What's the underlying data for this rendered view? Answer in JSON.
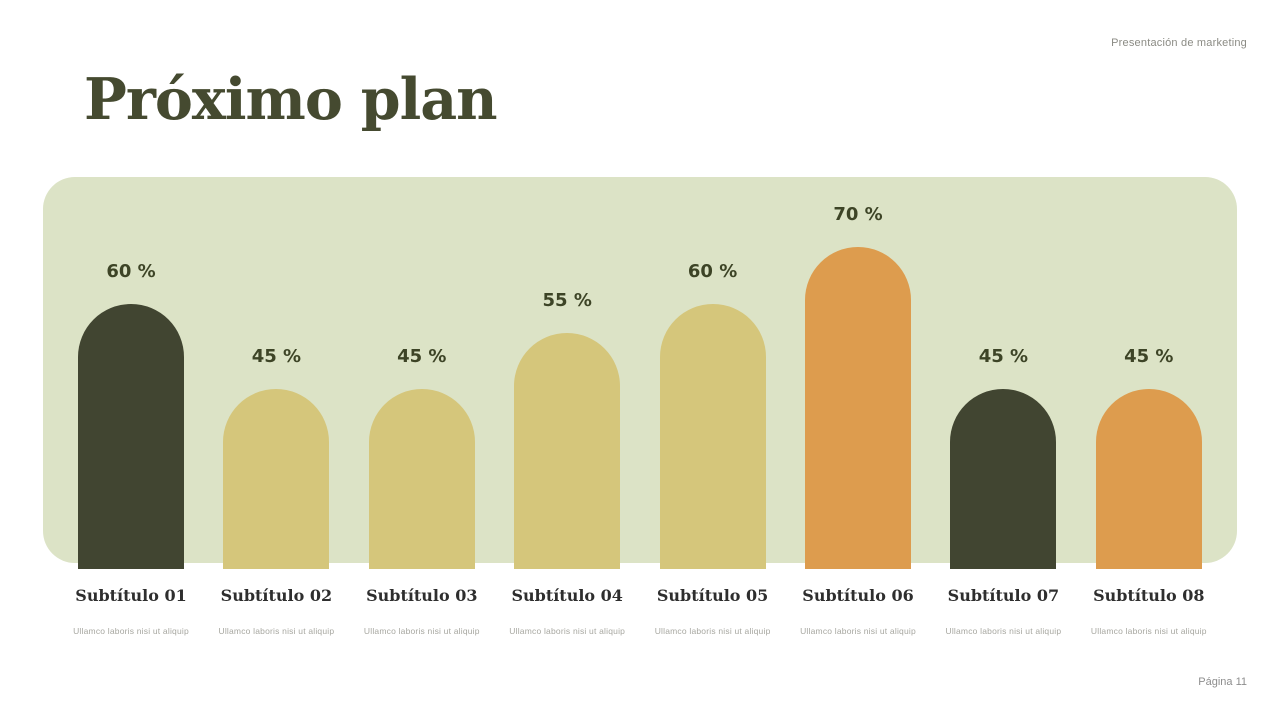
{
  "header": {
    "label": "Presentación de marketing"
  },
  "title": "Próximo plan",
  "footer": {
    "page_label": "Página 11"
  },
  "colors": {
    "page_background": "#ffffff",
    "panel_background": "#dce3c6",
    "title_text": "#454a30",
    "value_label_text": "#3d4426",
    "category_text": "#2e2e2e",
    "description_text": "#a7a7a0",
    "muted_text": "#8b8b84",
    "bar_dark_olive": "#414531",
    "bar_khaki": "#d5c67b",
    "bar_orange": "#dd9c4e"
  },
  "chart_data": {
    "type": "bar",
    "title": "Próximo plan",
    "unit": "%",
    "categories": [
      "Subtítulo 01",
      "Subtítulo 02",
      "Subtítulo 03",
      "Subtítulo 04",
      "Subtítulo 05",
      "Subtítulo 06",
      "Subtítulo 07",
      "Subtítulo 08"
    ],
    "values": [
      60,
      45,
      45,
      55,
      60,
      70,
      45,
      45
    ],
    "value_labels": [
      "60 %",
      "45 %",
      "45 %",
      "55 %",
      "60 %",
      "70 %",
      "45 %",
      "45 %"
    ],
    "descriptions": [
      "Ullamco laboris nisi ut aliquip",
      "Ullamco laboris nisi ut aliquip",
      "Ullamco laboris nisi ut aliquip",
      "Ullamco laboris nisi ut aliquip",
      "Ullamco laboris nisi ut aliquip",
      "Ullamco laboris nisi ut aliquip",
      "Ullamco laboris nisi ut aliquip",
      "Ullamco laboris nisi ut aliquip"
    ],
    "bar_colors": [
      "#414531",
      "#d5c67b",
      "#d5c67b",
      "#d5c67b",
      "#d5c67b",
      "#dd9c4e",
      "#414531",
      "#dd9c4e"
    ],
    "bar_shape": "rounded-top",
    "ylim": [
      0,
      100
    ],
    "grid": false,
    "legend": false,
    "axes_visible": false
  }
}
